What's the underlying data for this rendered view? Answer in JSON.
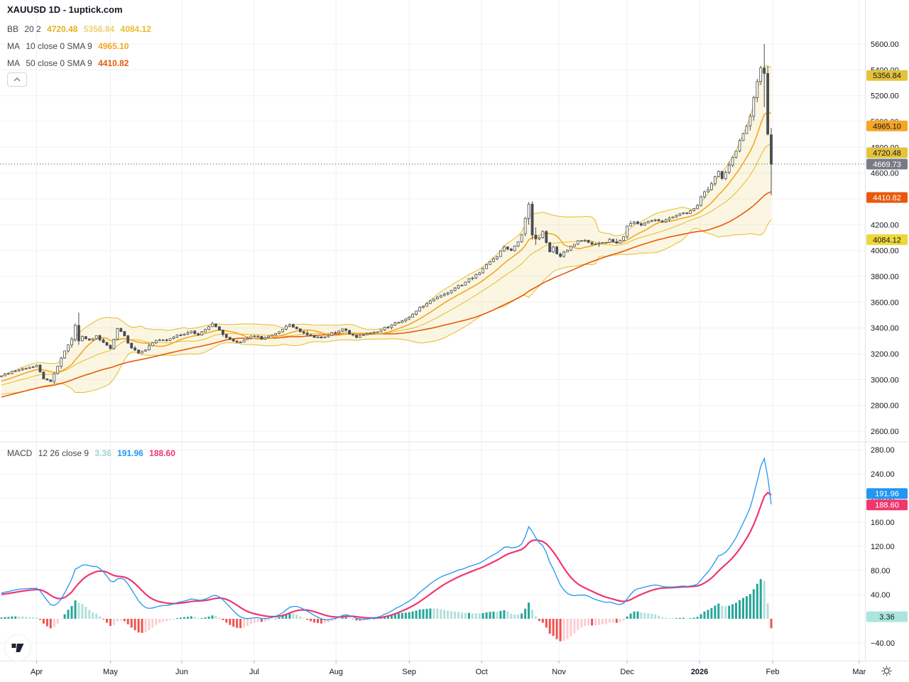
{
  "window": {
    "title": "XAUUSD 1D - 1uptick.com"
  },
  "legend": {
    "symbol_title": "XAUUSD 1D - 1uptick.com",
    "bb": {
      "name": "BB",
      "params": "20 2",
      "basis": "4720.48",
      "upper": "5356.84",
      "lower": "4084.12"
    },
    "ma10": {
      "name": "MA",
      "params": "10 close 0 SMA 9",
      "value": "4965.10"
    },
    "ma50": {
      "name": "MA",
      "params": "50 close 0 SMA 9",
      "value": "4410.82"
    },
    "macd": {
      "name": "MACD",
      "params": "12 26 close 9",
      "hist": "3.36",
      "macd_line": "191.96",
      "signal": "188.60"
    }
  },
  "icons": {
    "collapse": "chevron-up",
    "settings": "gear",
    "logo": "tradingview"
  },
  "colors": {
    "background": "#FFFFFF",
    "grid": "#F0F0F2",
    "separator": "#E0E3EB",
    "axis_text": "#131722",
    "legend_text": "#434651",
    "candle_up_fill": "#FFFFFF",
    "candle_down_fill": "#494C53",
    "candle_border": "#494C53",
    "bb_band": "#E3BC2B",
    "bb_fill": "#EFD87B",
    "bb_basis_text": "#E3B21C",
    "bb_upper_text": "#EDD06E",
    "bb_lower_text": "#E8BE2A",
    "ma10": "#F5A623",
    "ma50": "#E8590C",
    "macd_line": "#2196F3",
    "signal_line": "#F0366E",
    "hist_up_strong": "#26A69A",
    "hist_up_weak": "#B2DFDB",
    "hist_down_strong": "#EF5350",
    "hist_down_weak": "#FBCDD2",
    "hist_legend": "#9CD7CC",
    "current_price_line": "#42454A",
    "tick_mark": "#B2B5BE",
    "icon_gray": "#787B86"
  },
  "axes": {
    "price_ticks": [
      5600,
      5400,
      5200,
      5000,
      4800,
      4600,
      4400,
      4200,
      4000,
      3800,
      3600,
      3400,
      3200,
      3000,
      2800,
      2600
    ],
    "macd_ticks": [
      280,
      240,
      200,
      160,
      120,
      80,
      40,
      -40
    ]
  },
  "badges": {
    "price": [
      {
        "name": "bb-upper-badge",
        "value": 5356.84,
        "bg": "#E4C33A",
        "fg": "#131722"
      },
      {
        "name": "ma10-badge",
        "value": 4965.1,
        "bg": "#F5A623",
        "fg": "#131722"
      },
      {
        "name": "bb-basis-badge",
        "value": 4720.48,
        "bg": "#E4C33A",
        "fg": "#131722"
      },
      {
        "name": "current-price-badge",
        "value": 4669.73,
        "bg": "#787B86",
        "fg": "#FFFFFF",
        "fixed": true
      },
      {
        "name": "ma50-badge",
        "value": 4410.82,
        "bg": "#E8590C",
        "fg": "#FFFFFF"
      },
      {
        "name": "bb-lower-badge",
        "value": 4084.12,
        "bg": "#EDD838",
        "fg": "#131722"
      }
    ],
    "macd": [
      {
        "name": "macd-line-badge",
        "value": 191.96,
        "bg": "#2196F3",
        "fg": "#FFFFFF"
      },
      {
        "name": "signal-line-badge",
        "value": 188.6,
        "bg": "#F0366E",
        "fg": "#FFFFFF"
      },
      {
        "name": "hist-badge",
        "value": 3.36,
        "bg": "#ACE5DC",
        "fg": "#131722"
      }
    ]
  },
  "chart_data": {
    "type": "candlestick+macd",
    "symbol": "XAUUSD",
    "interval": "1D",
    "source": "1uptick.com",
    "price_axis": {
      "min": 2600,
      "max": 5600,
      "step": 200
    },
    "macd_axis": {
      "min": -40,
      "max": 280,
      "step": 40
    },
    "current_price": 4669.73,
    "indicators": {
      "bollinger": {
        "period": 20,
        "stddev": 2,
        "basis": 4720.48,
        "upper": 5356.84,
        "lower": 4084.12
      },
      "ma10": {
        "period": 10,
        "value": 4965.1
      },
      "ma50": {
        "period": 50,
        "value": 4410.82
      },
      "macd": {
        "fast": 12,
        "slow": 26,
        "signal_period": 9,
        "macd": 191.96,
        "signal": 188.6,
        "histogram": 3.36
      }
    },
    "time_ticks": [
      {
        "label": "Apr",
        "t": 10
      },
      {
        "label": "May",
        "t": 31
      },
      {
        "label": "Jun",
        "t": 51.3
      },
      {
        "label": "Jul",
        "t": 71.9
      },
      {
        "label": "Aug",
        "t": 95.2
      },
      {
        "label": "Sep",
        "t": 116
      },
      {
        "label": "Oct",
        "t": 136.6
      },
      {
        "label": "Nov",
        "t": 158.6
      },
      {
        "label": "Dec",
        "t": 178
      },
      {
        "label": "2026",
        "t": 198.6,
        "bold": true
      },
      {
        "label": "Feb",
        "t": 219.4
      },
      {
        "label": "Mar",
        "t": 244
      }
    ],
    "candles": {
      "count": 220,
      "pre_keyframes": [
        [
          -55,
          2680
        ],
        [
          -40,
          2760
        ],
        [
          -30,
          2840
        ],
        [
          -20,
          2900
        ],
        [
          -10,
          2950
        ],
        [
          -3,
          2995
        ]
      ],
      "keyframes": [
        [
          0,
          3035
        ],
        [
          4,
          3065
        ],
        [
          8,
          3090
        ],
        [
          10,
          3105
        ],
        [
          12,
          3005
        ],
        [
          14,
          2985
        ],
        [
          16,
          3110
        ],
        [
          18,
          3220
        ],
        [
          20,
          3310
        ],
        [
          23,
          3330
        ],
        [
          25,
          3300
        ],
        [
          27,
          3345
        ],
        [
          29,
          3280
        ],
        [
          31,
          3245
        ],
        [
          33,
          3395
        ],
        [
          35,
          3335
        ],
        [
          37,
          3245
        ],
        [
          39,
          3205
        ],
        [
          41,
          3235
        ],
        [
          43,
          3285
        ],
        [
          45,
          3315
        ],
        [
          47,
          3295
        ],
        [
          49,
          3330
        ],
        [
          51,
          3350
        ],
        [
          54,
          3370
        ],
        [
          56,
          3345
        ],
        [
          58,
          3390
        ],
        [
          60,
          3425
        ],
        [
          62,
          3380
        ],
        [
          64,
          3325
        ],
        [
          66,
          3295
        ],
        [
          68,
          3285
        ],
        [
          70,
          3320
        ],
        [
          72,
          3340
        ],
        [
          74,
          3315
        ],
        [
          76,
          3335
        ],
        [
          78,
          3360
        ],
        [
          80,
          3395
        ],
        [
          82,
          3430
        ],
        [
          84,
          3395
        ],
        [
          86,
          3360
        ],
        [
          88,
          3335
        ],
        [
          91,
          3320
        ],
        [
          93,
          3345
        ],
        [
          95,
          3365
        ],
        [
          97,
          3392
        ],
        [
          99,
          3360
        ],
        [
          101,
          3333
        ],
        [
          103,
          3342
        ],
        [
          105,
          3358
        ],
        [
          107,
          3372
        ],
        [
          109,
          3398
        ],
        [
          111,
          3422
        ],
        [
          113,
          3448
        ],
        [
          116,
          3482
        ],
        [
          118,
          3532
        ],
        [
          120,
          3572
        ],
        [
          122,
          3612
        ],
        [
          124,
          3648
        ],
        [
          126,
          3658
        ],
        [
          128,
          3692
        ],
        [
          130,
          3722
        ],
        [
          132,
          3752
        ],
        [
          134,
          3792
        ],
        [
          136,
          3825
        ],
        [
          137,
          3858
        ],
        [
          139,
          3908
        ],
        [
          141,
          3962
        ],
        [
          143,
          4032
        ],
        [
          145,
          4002
        ],
        [
          147,
          4065
        ],
        [
          148,
          4130
        ],
        [
          153,
          4105
        ],
        [
          154,
          4152
        ],
        [
          155,
          4062
        ],
        [
          156,
          3992
        ],
        [
          157,
          4032
        ],
        [
          158,
          3978
        ],
        [
          159,
          3952
        ],
        [
          161,
          4005
        ],
        [
          163,
          4052
        ],
        [
          165,
          4082
        ],
        [
          167,
          4068
        ],
        [
          169,
          4042
        ],
        [
          171,
          4058
        ],
        [
          173,
          4078
        ],
        [
          175,
          4058
        ],
        [
          177,
          4098
        ],
        [
          178,
          4192
        ],
        [
          180,
          4228
        ],
        [
          182,
          4192
        ],
        [
          184,
          4228
        ],
        [
          186,
          4248
        ],
        [
          188,
          4228
        ],
        [
          190,
          4248
        ],
        [
          192,
          4268
        ],
        [
          194,
          4288
        ],
        [
          196,
          4302
        ],
        [
          198,
          4342
        ],
        [
          199,
          4422
        ],
        [
          201,
          4482
        ],
        [
          203,
          4562
        ],
        [
          204,
          4602
        ],
        [
          205,
          4568
        ],
        [
          206,
          4612
        ],
        [
          207,
          4662
        ],
        [
          208,
          4712
        ],
        [
          209,
          4772
        ],
        [
          210,
          4842
        ],
        [
          211,
          4902
        ],
        [
          212,
          4965
        ]
      ],
      "overrides": {
        "21": [
          3310,
          3435,
          3295,
          3420
        ],
        "22": [
          3420,
          3520,
          3270,
          3300
        ],
        "149": [
          4130,
          4260,
          4110,
          4250
        ],
        "150": [
          4250,
          4375,
          4200,
          4360
        ],
        "151": [
          4360,
          4382,
          4085,
          4120
        ],
        "152": [
          4120,
          4180,
          4042,
          4090
        ],
        "213": [
          4965,
          5060,
          4930,
          5040
        ],
        "214": [
          5040,
          5200,
          5005,
          5185
        ],
        "215": [
          5185,
          5330,
          5150,
          5310
        ],
        "216": [
          5310,
          5432,
          5282,
          5415
        ],
        "217": [
          5415,
          5600,
          5112,
          5372
        ],
        "218": [
          5372,
          5430,
          4892,
          4902
        ],
        "219": [
          4897,
          4950,
          4428,
          4669.73
        ]
      }
    }
  }
}
